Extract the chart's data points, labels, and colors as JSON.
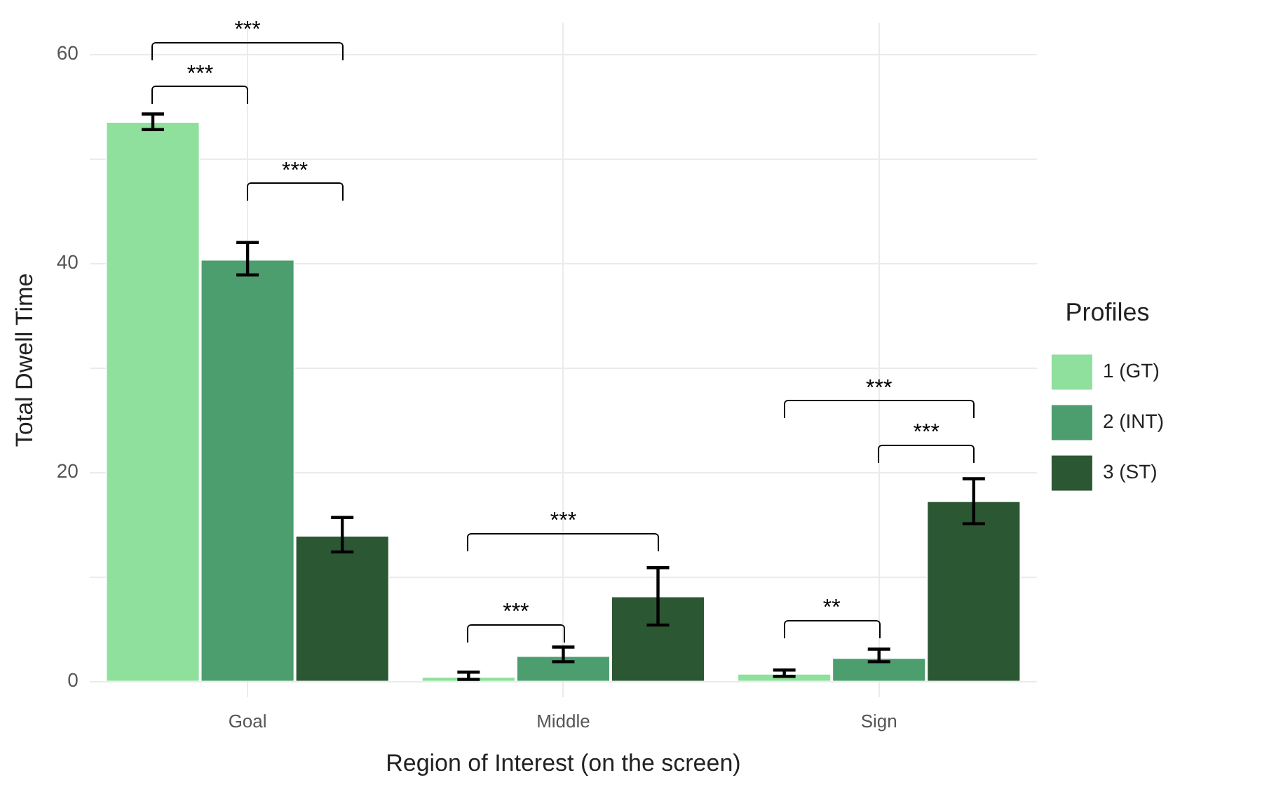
{
  "chart_data": {
    "type": "bar",
    "xlabel": "Region of Interest (on the screen)",
    "ylabel": "Total Dwell Time",
    "legend_title": "Profiles",
    "categories": [
      "Goal",
      "Middle",
      "Sign"
    ],
    "series": [
      {
        "name": "1 (GT)",
        "color": "#8ee09c",
        "values": [
          53.6,
          0.5,
          0.8
        ],
        "errors": [
          [
            52.8,
            54.3
          ],
          [
            0.2,
            0.9
          ],
          [
            0.5,
            1.1
          ]
        ]
      },
      {
        "name": "2 (INT)",
        "color": "#4c9e6e",
        "values": [
          40.4,
          2.5,
          2.3
        ],
        "errors": [
          [
            38.9,
            42.0
          ],
          [
            1.9,
            3.3
          ],
          [
            1.9,
            3.1
          ]
        ]
      },
      {
        "name": "3 (ST)",
        "color": "#2b5733",
        "values": [
          14.0,
          8.2,
          17.3
        ],
        "errors": [
          [
            12.4,
            15.7
          ],
          [
            5.4,
            10.9
          ],
          [
            15.1,
            19.4
          ]
        ]
      }
    ],
    "ylim": [
      -1.5,
      63
    ],
    "yticks": [
      0,
      {
        "value": 10,
        "label": null
      },
      20,
      {
        "value": 30,
        "label": null
      },
      40,
      {
        "value": 50,
        "label": null
      },
      60
    ],
    "grid": true,
    "legend": "right",
    "annotations": [
      "***",
      "***",
      "***",
      "***",
      "***",
      "***",
      "***",
      "**"
    ]
  }
}
